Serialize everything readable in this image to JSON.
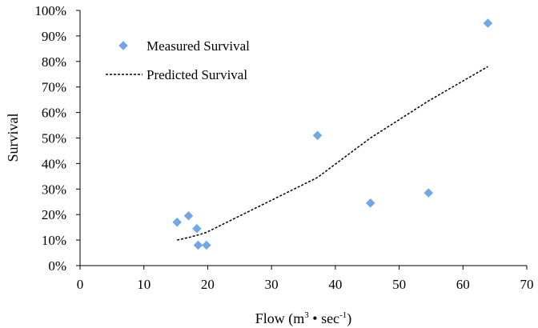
{
  "chart_data": {
    "type": "scatter",
    "xlabel": "Flow (m³ • sec⁻¹)",
    "xlabel_parts": {
      "pre": "Flow (m",
      "sup1": "3",
      "mid": " • sec",
      "sup2": "-1",
      "post": ")"
    },
    "ylabel": "Survival",
    "xlim": [
      0,
      70
    ],
    "ylim": [
      0,
      1
    ],
    "x_ticks": [
      0,
      10,
      20,
      30,
      40,
      50,
      60,
      70
    ],
    "x_tick_labels": [
      "0",
      "10",
      "20",
      "30",
      "40",
      "50",
      "60",
      "70"
    ],
    "y_ticks": [
      0,
      0.1,
      0.2,
      0.3,
      0.4,
      0.5,
      0.6,
      0.7,
      0.8,
      0.9,
      1.0
    ],
    "y_tick_labels": [
      "0%",
      "10%",
      "20%",
      "30%",
      "40%",
      "50%",
      "60%",
      "70%",
      "80%",
      "90%",
      "100%"
    ],
    "grid": false,
    "legend_position": "top-left",
    "series": [
      {
        "name": "Measured Survival",
        "type": "scatter",
        "marker": "diamond",
        "color": "#6fa8e8",
        "points": [
          {
            "x": 15.2,
            "y": 0.17
          },
          {
            "x": 17.0,
            "y": 0.195
          },
          {
            "x": 18.3,
            "y": 0.145
          },
          {
            "x": 18.5,
            "y": 0.08
          },
          {
            "x": 19.8,
            "y": 0.08
          },
          {
            "x": 37.2,
            "y": 0.51
          },
          {
            "x": 45.5,
            "y": 0.245
          },
          {
            "x": 54.6,
            "y": 0.285
          },
          {
            "x": 63.9,
            "y": 0.95
          }
        ]
      },
      {
        "name": "Predicted Survival",
        "type": "line",
        "style": "dashed",
        "color": "#000000",
        "points": [
          {
            "x": 15.2,
            "y": 0.1
          },
          {
            "x": 17.0,
            "y": 0.11
          },
          {
            "x": 18.5,
            "y": 0.12
          },
          {
            "x": 19.8,
            "y": 0.13
          },
          {
            "x": 37.2,
            "y": 0.345
          },
          {
            "x": 45.5,
            "y": 0.5
          },
          {
            "x": 54.6,
            "y": 0.645
          },
          {
            "x": 63.9,
            "y": 0.78
          }
        ]
      }
    ]
  }
}
